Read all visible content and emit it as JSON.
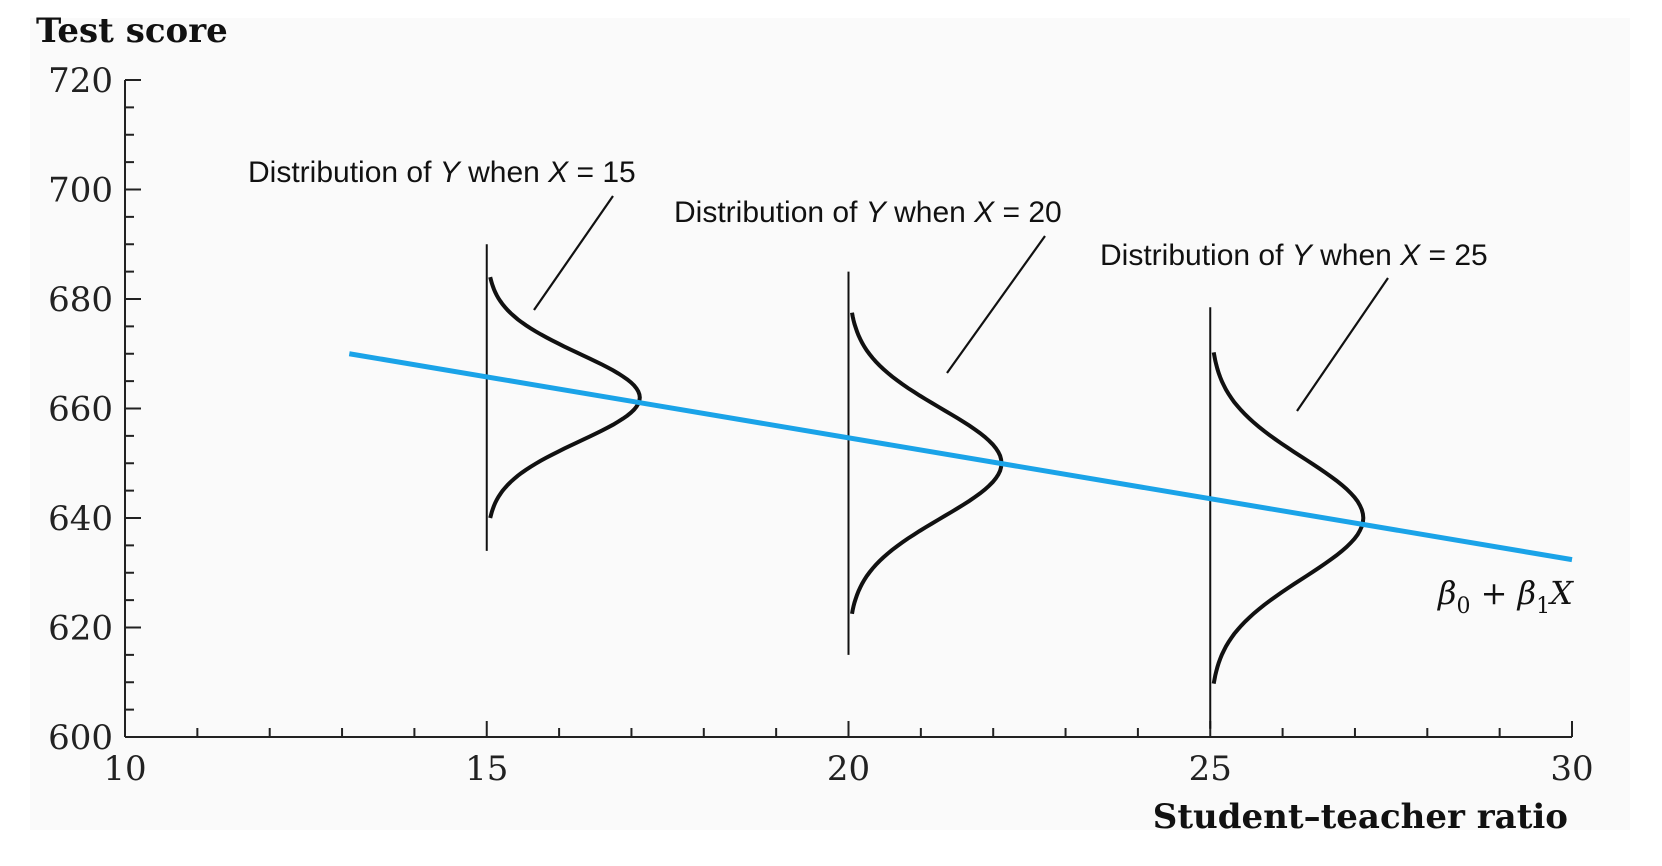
{
  "chart_data": {
    "type": "line",
    "ylabel": "Test score",
    "xlabel": "Student–teacher ratio",
    "xlim": [
      10,
      30
    ],
    "ylim": [
      600,
      720
    ],
    "x_ticks": [
      10,
      15,
      20,
      25,
      30
    ],
    "y_ticks": [
      600,
      620,
      640,
      660,
      680,
      700,
      720
    ],
    "series": [
      {
        "x": [
          13.1,
          30
        ],
        "y": [
          670,
          632.4
        ]
      }
    ],
    "distributions": [
      {
        "x": 15,
        "mean": 662,
        "sd": 8,
        "label_pre": "Distribution of ",
        "label_y": "Y",
        "label_mid": " when ",
        "label_x": "X",
        "label_post": " = 15"
      },
      {
        "x": 20,
        "mean": 650,
        "sd": 10,
        "label_pre": "Distribution of ",
        "label_y": "Y",
        "label_mid": " when ",
        "label_x": "X",
        "label_post": " = 20"
      },
      {
        "x": 25,
        "mean": 640,
        "sd": 11,
        "label_pre": "Distribution of ",
        "label_y": "Y",
        "label_mid": " when ",
        "label_x": "X",
        "label_post": " = 25"
      }
    ],
    "regression_label": {
      "b0": "β",
      "s0": "0",
      "op": " +",
      "b1": "β",
      "s1": "1",
      "var": "X"
    },
    "colors": {
      "line": "#1aa3e8",
      "curve": "#111111",
      "background": "#fafafa"
    }
  }
}
